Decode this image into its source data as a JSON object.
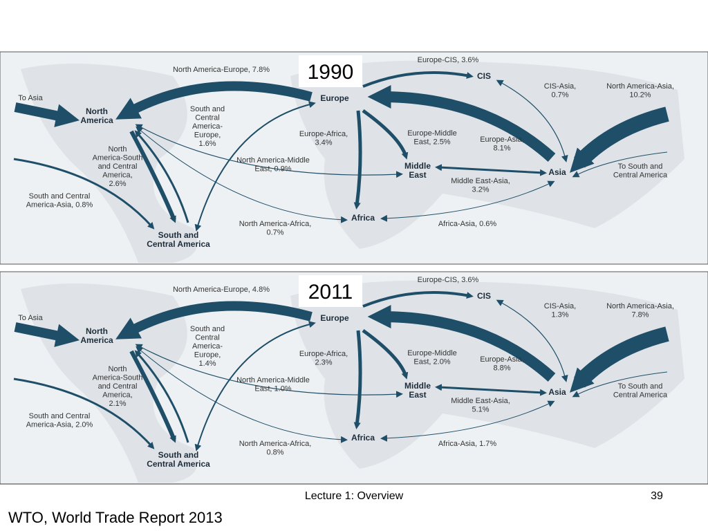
{
  "maps": [
    {
      "year": "1990",
      "regions": [
        [
          "North",
          "America"
        ],
        [
          "Europe"
        ],
        [
          "CIS"
        ],
        [
          "Asia"
        ],
        [
          "Middle",
          "East"
        ],
        [
          "Africa"
        ],
        [
          "South and",
          "Central America"
        ]
      ],
      "flows": [
        [
          "North America-Europe, 7.8%"
        ],
        [
          "Europe-CIS, 3.6%"
        ],
        [
          "CIS-Asia,",
          "0.7%"
        ],
        [
          "North America-Asia,",
          "10.2%"
        ],
        [
          "To Asia"
        ],
        [
          "South and",
          "Central",
          "America-",
          "Europe,",
          "1.6%"
        ],
        [
          "Europe-Africa,",
          "3.4%"
        ],
        [
          "Europe-Middle",
          "East, 2.5%"
        ],
        [
          "Europe-Asia,",
          "8.1%"
        ],
        [
          "North",
          "America-South",
          "and Central",
          "America,",
          "2.6%"
        ],
        [
          "North America-Middle",
          "East, 0.9%"
        ],
        [
          "To South and",
          "Central America"
        ],
        [
          "Middle East-Asia,",
          "3.2%"
        ],
        [
          "South and Central",
          "America-Asia, 0.8%"
        ],
        [
          "North America-Africa,",
          "0.7%"
        ],
        [
          "Africa-Asia, 0.6%"
        ]
      ]
    },
    {
      "year": "2011",
      "regions": [
        [
          "North",
          "America"
        ],
        [
          "Europe"
        ],
        [
          "CIS"
        ],
        [
          "Asia"
        ],
        [
          "Middle",
          "East"
        ],
        [
          "Africa"
        ],
        [
          "South and",
          "Central America"
        ]
      ],
      "flows": [
        [
          "North America-Europe, 4.8%"
        ],
        [
          "Europe-CIS, 3.6%"
        ],
        [
          "CIS-Asia,",
          "1.3%"
        ],
        [
          "North America-Asia,",
          "7.8%"
        ],
        [
          "To Asia"
        ],
        [
          "South and",
          "Central",
          "America-",
          "Europe,",
          "1.4%"
        ],
        [
          "Europe-Africa,",
          "2.3%"
        ],
        [
          "Europe-Middle",
          "East, 2.0%"
        ],
        [
          "Europe-Asia,",
          "8.8%"
        ],
        [
          "North",
          "America-South",
          "and Central",
          "America,",
          "2.1%"
        ],
        [
          "North America-Middle",
          "East, 1.0%"
        ],
        [
          "To South and",
          "Central America"
        ],
        [
          "Middle East-Asia,",
          "5.1%"
        ],
        [
          "South and Central",
          "America-Asia, 2.0%"
        ],
        [
          "North America-Africa,",
          "0.8%"
        ],
        [
          "Africa-Asia, 1.7%"
        ]
      ]
    }
  ],
  "footer": {
    "lecture": "Lecture 1:  Overview",
    "page": "39",
    "source": "WTO, World Trade Report 2013"
  }
}
